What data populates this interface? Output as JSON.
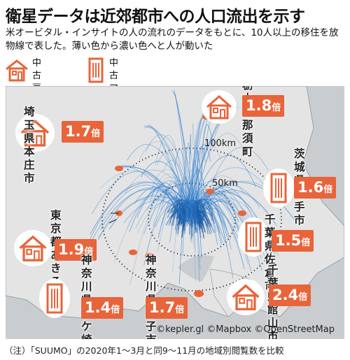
{
  "title": "衛星データは近郊都市への人口流出を示す",
  "subtitle": "米オービタル・インサイトの人の流れのデータをもとに、10人以上の移住を放物線で表した。薄い色から濃い色へと人が動いた",
  "legend": [
    {
      "label": "中古\n戸建て",
      "icon": "house-icon"
    },
    {
      "label": "中古\nマンション",
      "icon": "building-icon"
    }
  ],
  "rings": {
    "outer": "100km",
    "inner": "50km"
  },
  "cities": [
    {
      "name": "栃木県那須町",
      "value": "1.8",
      "unit": "倍",
      "icon": "house-icon"
    },
    {
      "name": "埼玉県本庄市",
      "value": "1.7",
      "unit": "倍",
      "icon": "house-icon"
    },
    {
      "name": "茨城県\n取手市",
      "value": "1.6",
      "unit": "倍",
      "icon": "building-icon"
    },
    {
      "name": "千葉県佐倉市",
      "value": "1.5",
      "unit": "倍",
      "icon": "building-icon"
    },
    {
      "name": "東京都\nあきる野市",
      "value": "1.9",
      "unit": "倍",
      "icon": "house-icon"
    },
    {
      "name": "神奈川県\n茅ケ崎市",
      "value": "1.4",
      "unit": "倍",
      "icon": "building-icon"
    },
    {
      "name": "神奈川県\n逗子市",
      "value": "1.7",
      "unit": "倍",
      "icon": "building-icon"
    },
    {
      "name": "千葉県館山市",
      "value": "2.4",
      "unit": "倍",
      "icon": "house-icon"
    }
  ],
  "credit": "©kepler.gl ©Mapbox ©OpenStreetMap",
  "note": "（注）「SUUMO」の2020年1～3月と同9～11月の地域別閲覧数を比較",
  "colors": {
    "accent": "#e8643a",
    "land": "#e4e4e4",
    "sea": "#c9cdd0",
    "flow": "#2f7fd0"
  }
}
